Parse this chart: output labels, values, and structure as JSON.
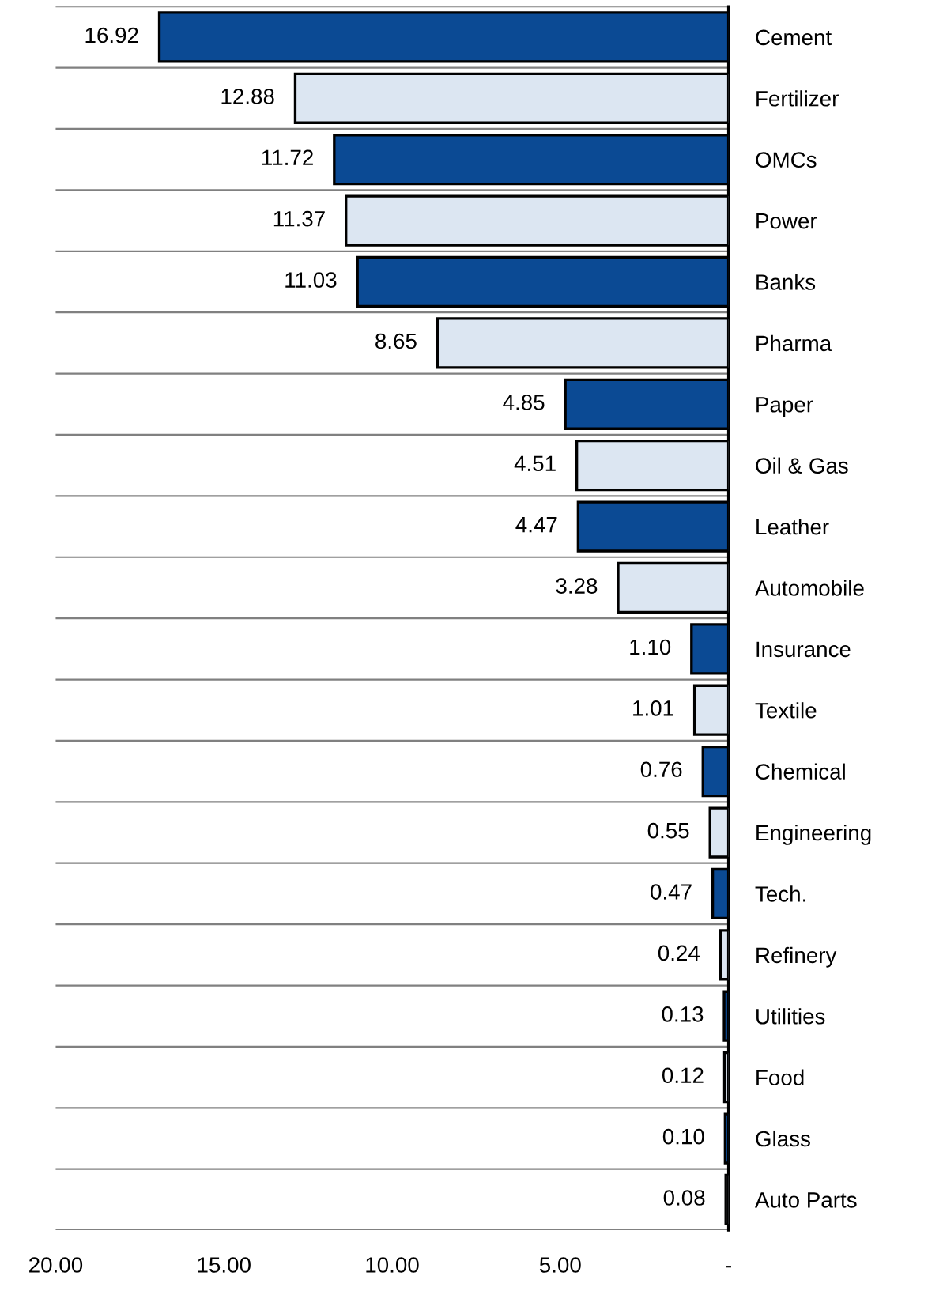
{
  "chart_data": {
    "type": "bar",
    "orientation": "horizontal",
    "categories": [
      "Cement",
      "Fertilizer",
      "OMCs",
      "Power",
      "Banks",
      "Pharma",
      "Paper",
      "Oil & Gas",
      "Leather",
      "Automobile",
      "Insurance",
      "Textile",
      "Chemical",
      "Engineering",
      "Tech.",
      "Refinery",
      "Utilities",
      "Food",
      "Glass",
      "Auto Parts"
    ],
    "values": [
      16.92,
      12.88,
      11.72,
      11.37,
      11.03,
      8.65,
      4.85,
      4.51,
      4.47,
      3.28,
      1.1,
      1.01,
      0.76,
      0.55,
      0.47,
      0.24,
      0.13,
      0.12,
      0.1,
      0.08
    ],
    "value_labels": [
      "16.92",
      "12.88",
      "11.72",
      "11.37",
      "11.03",
      "8.65",
      "4.85",
      "4.51",
      "4.47",
      "3.28",
      "1.10",
      "1.01",
      "0.76",
      "0.55",
      "0.47",
      "0.24",
      "0.13",
      "0.12",
      "0.10",
      "0.08"
    ],
    "colors": [
      "#0b4a94",
      "#dce6f2",
      "#0b4a94",
      "#dce6f2",
      "#0b4a94",
      "#dce6f2",
      "#0b4a94",
      "#dce6f2",
      "#0b4a94",
      "#dce6f2",
      "#0b4a94",
      "#dce6f2",
      "#0b4a94",
      "#dce6f2",
      "#0b4a94",
      "#dce6f2",
      "#0b4a94",
      "#dce6f2",
      "#0b4a94",
      "#dce6f2"
    ],
    "xlim": [
      20,
      0
    ],
    "xticks": [
      {
        "value": 20,
        "label": "20.00"
      },
      {
        "value": 15,
        "label": "15.00"
      },
      {
        "value": 10,
        "label": "10.00"
      },
      {
        "value": 5,
        "label": "5.00"
      },
      {
        "value": 0,
        "label": "-"
      }
    ],
    "grid": "y"
  }
}
